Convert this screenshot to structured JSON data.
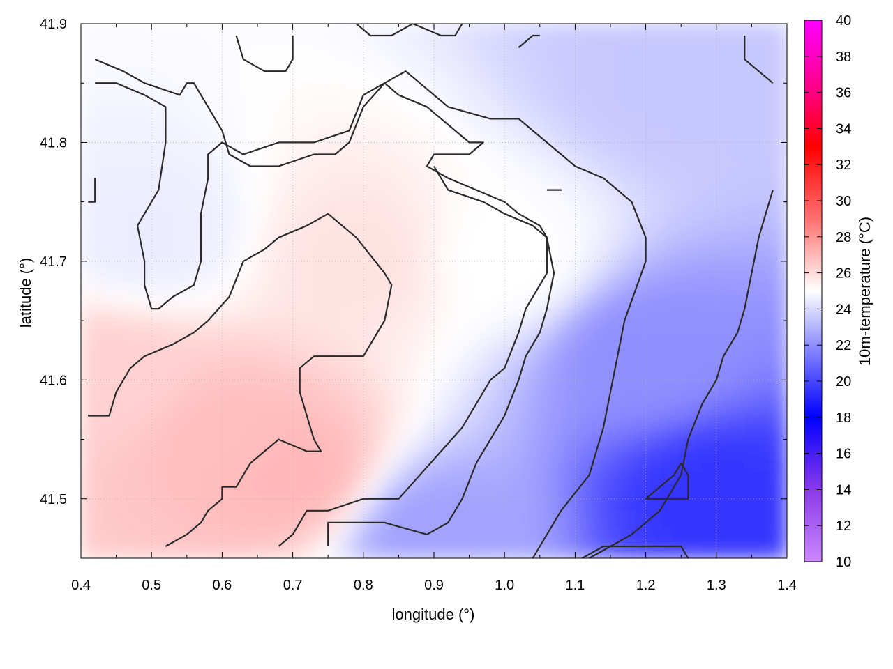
{
  "chart_data": {
    "type": "heatmap",
    "title": "",
    "xlabel": "longitude (°)",
    "ylabel": "latitude (°)",
    "colorbar_label": "10m-temperature (°C)",
    "xlim": [
      0.4,
      1.4
    ],
    "ylim": [
      41.45,
      41.9
    ],
    "x_ticks": [
      "0.4",
      "0.5",
      "0.6",
      "0.7",
      "0.8",
      "0.9",
      "1.0",
      "1.1",
      "1.2",
      "1.3",
      "1.4"
    ],
    "y_ticks": [
      "41.5",
      "41.6",
      "41.7",
      "41.8",
      "41.9"
    ],
    "colorbar_range": [
      10,
      40
    ],
    "colorbar_ticks": [
      "10",
      "12",
      "14",
      "16",
      "18",
      "20",
      "22",
      "24",
      "26",
      "28",
      "30",
      "32",
      "34",
      "36",
      "38",
      "40"
    ],
    "colormap": [
      {
        "value": 10,
        "color": "#cc88ff"
      },
      {
        "value": 14,
        "color": "#8a3ae8"
      },
      {
        "value": 18,
        "color": "#0000ff"
      },
      {
        "value": 21,
        "color": "#6a6aff"
      },
      {
        "value": 25,
        "color": "#ffffff"
      },
      {
        "value": 29,
        "color": "#ff7070"
      },
      {
        "value": 33,
        "color": "#ff0000"
      },
      {
        "value": 36,
        "color": "#ff0080"
      },
      {
        "value": 40,
        "color": "#ff00ff"
      }
    ],
    "grid": true,
    "field_samples": [
      {
        "lon": 0.45,
        "lat": 41.6,
        "temp": 26.3
      },
      {
        "lon": 0.6,
        "lat": 41.55,
        "temp": 26.8
      },
      {
        "lon": 0.7,
        "lat": 41.52,
        "temp": 27.0
      },
      {
        "lon": 0.8,
        "lat": 41.7,
        "temp": 25.8
      },
      {
        "lon": 0.5,
        "lat": 41.72,
        "temp": 24.5
      },
      {
        "lon": 1.0,
        "lat": 41.7,
        "temp": 25.0
      },
      {
        "lon": 1.2,
        "lat": 41.62,
        "temp": 22.0
      },
      {
        "lon": 1.3,
        "lat": 41.5,
        "temp": 19.5
      },
      {
        "lon": 1.25,
        "lat": 41.85,
        "temp": 23.5
      },
      {
        "lon": 0.9,
        "lat": 41.47,
        "temp": 22.5
      }
    ],
    "contour_lines": [
      [
        [
          0.42,
          41.87
        ],
        [
          0.46,
          41.86
        ],
        [
          0.49,
          41.85
        ],
        [
          0.54,
          41.84
        ],
        [
          0.55,
          41.85
        ],
        [
          0.56,
          41.85
        ],
        [
          0.6,
          41.81
        ],
        [
          0.61,
          41.79
        ],
        [
          0.64,
          41.78
        ],
        [
          0.68,
          41.78
        ],
        [
          0.73,
          41.79
        ],
        [
          0.76,
          41.79
        ],
        [
          0.78,
          41.8
        ],
        [
          0.8,
          41.83
        ],
        [
          0.83,
          41.85
        ],
        [
          0.86,
          41.86
        ],
        [
          0.88,
          41.85
        ],
        [
          0.92,
          41.83
        ],
        [
          0.98,
          41.82
        ],
        [
          1.02,
          41.82
        ],
        [
          1.06,
          41.8
        ],
        [
          1.1,
          41.78
        ],
        [
          1.14,
          41.77
        ],
        [
          1.18,
          41.75
        ],
        [
          1.2,
          41.72
        ],
        [
          1.2,
          41.7
        ],
        [
          1.17,
          41.65
        ],
        [
          1.15,
          41.59
        ],
        [
          1.14,
          41.56
        ],
        [
          1.12,
          41.52
        ],
        [
          1.08,
          41.49
        ],
        [
          1.05,
          41.46
        ],
        [
          1.04,
          41.45
        ]
      ],
      [
        [
          0.42,
          41.85
        ],
        [
          0.45,
          41.85
        ],
        [
          0.49,
          41.84
        ],
        [
          0.52,
          41.83
        ],
        [
          0.52,
          41.8
        ],
        [
          0.51,
          41.76
        ],
        [
          0.48,
          41.73
        ],
        [
          0.49,
          41.7
        ],
        [
          0.49,
          41.68
        ],
        [
          0.5,
          41.66
        ],
        [
          0.51,
          41.66
        ],
        [
          0.53,
          41.67
        ],
        [
          0.56,
          41.68
        ],
        [
          0.57,
          41.7
        ],
        [
          0.57,
          41.74
        ],
        [
          0.58,
          41.77
        ],
        [
          0.58,
          41.79
        ],
        [
          0.6,
          41.8
        ],
        [
          0.63,
          41.79
        ],
        [
          0.68,
          41.8
        ],
        [
          0.73,
          41.8
        ],
        [
          0.78,
          41.81
        ],
        [
          0.8,
          41.84
        ],
        [
          0.83,
          41.85
        ],
        [
          0.85,
          41.84
        ],
        [
          0.89,
          41.83
        ],
        [
          0.93,
          41.81
        ],
        [
          0.95,
          41.8
        ],
        [
          0.97,
          41.8
        ],
        [
          0.95,
          41.79
        ],
        [
          0.9,
          41.79
        ],
        [
          0.89,
          41.78
        ],
        [
          0.92,
          41.77
        ],
        [
          0.96,
          41.76
        ],
        [
          1.0,
          41.75
        ],
        [
          1.02,
          41.74
        ],
        [
          1.05,
          41.73
        ],
        [
          1.06,
          41.72
        ],
        [
          1.06,
          41.69
        ],
        [
          1.03,
          41.66
        ],
        [
          1.02,
          41.64
        ],
        [
          1.0,
          41.61
        ],
        [
          0.98,
          41.6
        ],
        [
          0.96,
          41.58
        ],
        [
          0.94,
          41.56
        ],
        [
          0.91,
          41.54
        ],
        [
          0.88,
          41.52
        ],
        [
          0.85,
          41.5
        ],
        [
          0.8,
          41.5
        ],
        [
          0.75,
          41.49
        ],
        [
          0.72,
          41.49
        ],
        [
          0.7,
          41.47
        ],
        [
          0.68,
          41.46
        ]
      ],
      [
        [
          0.41,
          41.57
        ],
        [
          0.44,
          41.57
        ],
        [
          0.45,
          41.59
        ],
        [
          0.47,
          41.61
        ],
        [
          0.49,
          41.62
        ],
        [
          0.53,
          41.63
        ],
        [
          0.56,
          41.64
        ],
        [
          0.58,
          41.65
        ],
        [
          0.61,
          41.67
        ],
        [
          0.63,
          41.7
        ],
        [
          0.66,
          41.71
        ],
        [
          0.68,
          41.72
        ],
        [
          0.72,
          41.73
        ],
        [
          0.75,
          41.74
        ],
        [
          0.77,
          41.73
        ],
        [
          0.79,
          41.72
        ],
        [
          0.83,
          41.69
        ],
        [
          0.84,
          41.68
        ],
        [
          0.83,
          41.65
        ],
        [
          0.82,
          41.64
        ],
        [
          0.8,
          41.62
        ],
        [
          0.77,
          41.62
        ],
        [
          0.73,
          41.62
        ],
        [
          0.71,
          41.61
        ],
        [
          0.71,
          41.59
        ],
        [
          0.72,
          41.57
        ],
        [
          0.73,
          41.55
        ],
        [
          0.74,
          41.54
        ],
        [
          0.72,
          41.54
        ],
        [
          0.68,
          41.55
        ],
        [
          0.66,
          41.54
        ],
        [
          0.64,
          41.53
        ],
        [
          0.62,
          41.51
        ],
        [
          0.6,
          41.51
        ],
        [
          0.6,
          41.5
        ],
        [
          0.58,
          41.49
        ],
        [
          0.57,
          41.48
        ],
        [
          0.55,
          41.47
        ],
        [
          0.52,
          41.46
        ]
      ],
      [
        [
          0.75,
          41.46
        ],
        [
          0.75,
          41.48
        ],
        [
          0.77,
          41.48
        ],
        [
          0.8,
          41.48
        ],
        [
          0.83,
          41.48
        ],
        [
          0.89,
          41.47
        ],
        [
          0.92,
          41.48
        ],
        [
          0.94,
          41.5
        ],
        [
          0.96,
          41.53
        ],
        [
          0.98,
          41.55
        ],
        [
          1.0,
          41.57
        ],
        [
          1.02,
          41.6
        ],
        [
          1.03,
          41.62
        ],
        [
          1.05,
          41.64
        ],
        [
          1.06,
          41.66
        ],
        [
          1.07,
          41.69
        ],
        [
          1.06,
          41.72
        ],
        [
          1.04,
          41.73
        ],
        [
          1.0,
          41.74
        ],
        [
          0.97,
          41.75
        ],
        [
          0.92,
          41.76
        ],
        [
          0.9,
          41.78
        ]
      ],
      [
        [
          1.11,
          41.45
        ],
        [
          1.14,
          41.46
        ],
        [
          1.18,
          41.46
        ],
        [
          1.25,
          41.46
        ],
        [
          1.26,
          41.45
        ]
      ],
      [
        [
          1.12,
          41.45
        ],
        [
          1.15,
          41.46
        ],
        [
          1.18,
          41.47
        ],
        [
          1.22,
          41.49
        ],
        [
          1.25,
          41.52
        ],
        [
          1.26,
          41.55
        ],
        [
          1.28,
          41.58
        ],
        [
          1.3,
          41.6
        ],
        [
          1.31,
          41.62
        ],
        [
          1.33,
          41.64
        ],
        [
          1.34,
          41.66
        ],
        [
          1.35,
          41.69
        ],
        [
          1.36,
          41.72
        ],
        [
          1.37,
          41.74
        ],
        [
          1.38,
          41.76
        ]
      ],
      [
        [
          1.2,
          41.5
        ],
        [
          1.22,
          41.51
        ],
        [
          1.24,
          41.52
        ],
        [
          1.25,
          41.53
        ],
        [
          1.26,
          41.52
        ],
        [
          1.26,
          41.5
        ],
        [
          1.22,
          41.5
        ],
        [
          1.2,
          41.5
        ]
      ],
      [
        [
          0.62,
          41.89
        ],
        [
          0.63,
          41.87
        ],
        [
          0.66,
          41.86
        ],
        [
          0.69,
          41.86
        ],
        [
          0.7,
          41.87
        ],
        [
          0.7,
          41.89
        ]
      ],
      [
        [
          0.79,
          41.9
        ],
        [
          0.81,
          41.89
        ],
        [
          0.84,
          41.89
        ],
        [
          0.87,
          41.9
        ],
        [
          0.91,
          41.89
        ],
        [
          0.93,
          41.89
        ],
        [
          0.94,
          41.9
        ]
      ],
      [
        [
          1.02,
          41.88
        ],
        [
          1.04,
          41.89
        ],
        [
          1.05,
          41.89
        ]
      ],
      [
        [
          1.34,
          41.89
        ],
        [
          1.34,
          41.87
        ],
        [
          1.36,
          41.86
        ],
        [
          1.38,
          41.85
        ]
      ],
      [
        [
          0.42,
          41.77
        ],
        [
          0.42,
          41.75
        ],
        [
          0.41,
          41.75
        ]
      ],
      [
        [
          1.06,
          41.76
        ],
        [
          1.07,
          41.76
        ],
        [
          1.08,
          41.76
        ],
        [
          1.07,
          41.76
        ],
        [
          1.06,
          41.76
        ]
      ]
    ]
  }
}
